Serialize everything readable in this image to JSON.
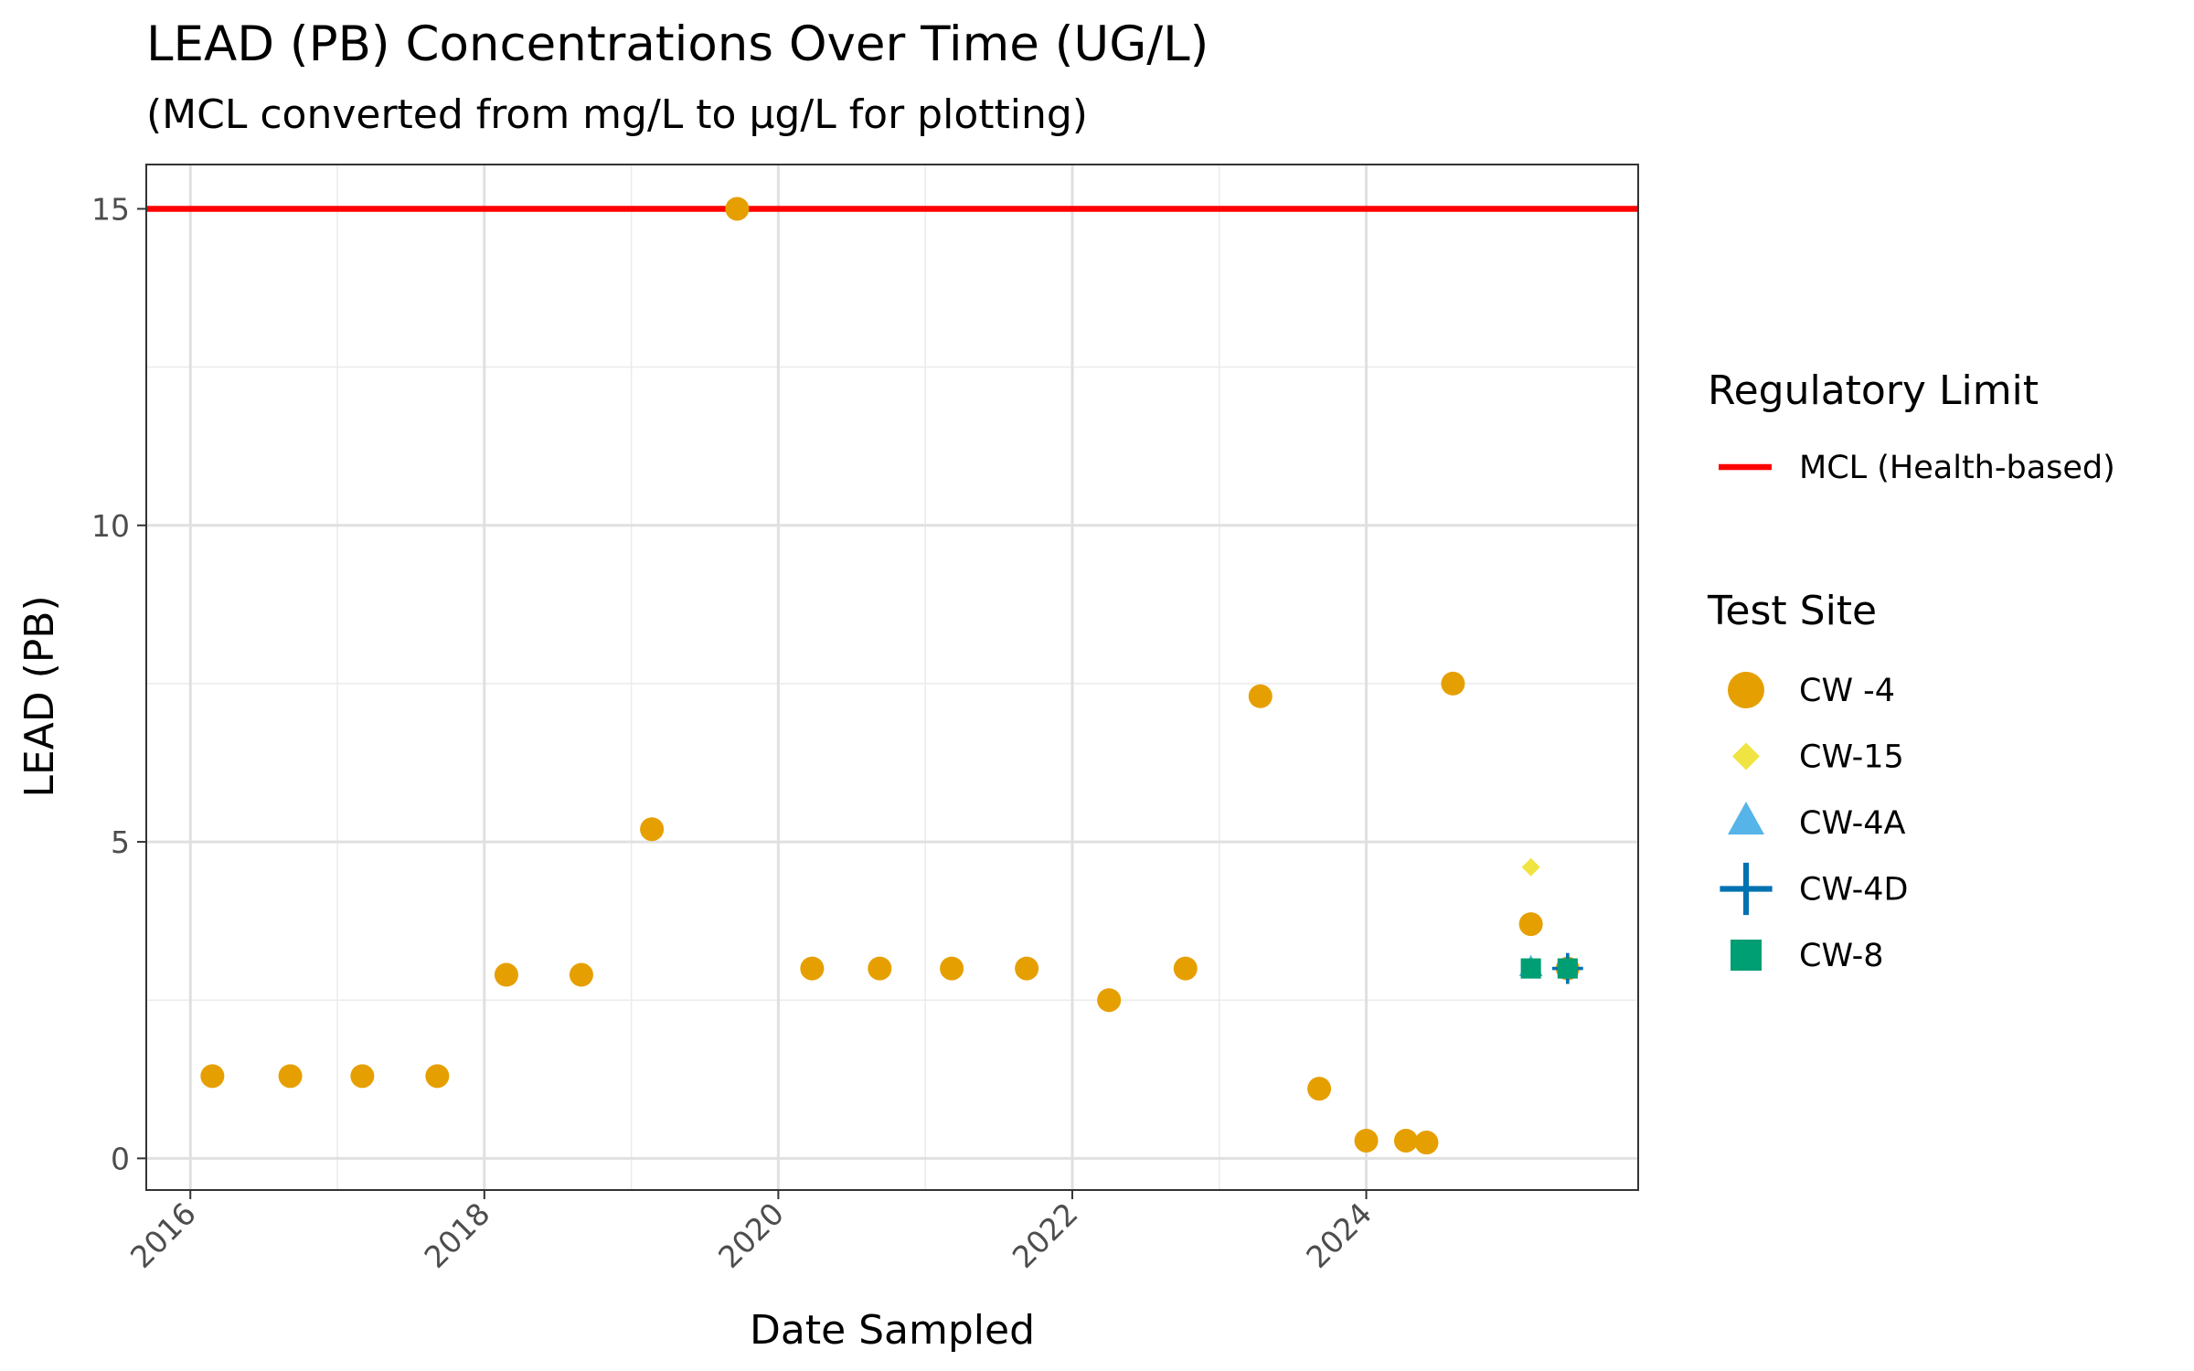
{
  "chart_data": {
    "type": "scatter",
    "title": "LEAD (PB) Concentrations Over Time (UG/L)",
    "subtitle": "(MCL converted from mg/L to µg/L for plotting)",
    "xlabel": "Date Sampled",
    "ylabel": "LEAD (PB)",
    "xlim": [
      2015.7,
      2025.85
    ],
    "ylim": [
      -0.5,
      15.7
    ],
    "x_ticks": [
      2016,
      2018,
      2020,
      2022,
      2024
    ],
    "x_tick_labels": [
      "2016",
      "2018",
      "2020",
      "2022",
      "2024"
    ],
    "y_ticks": [
      0,
      5,
      10,
      15
    ],
    "y_tick_labels": [
      "0",
      "5",
      "10",
      "15"
    ],
    "grid": true,
    "reference_lines": [
      {
        "name": "MCL (Health-based)",
        "y": 15,
        "color": "#ff0000"
      }
    ],
    "legends": {
      "regulatory": {
        "title": "Regulatory Limit",
        "items": [
          "MCL (Health-based)"
        ]
      },
      "sites": {
        "title": "Test Site",
        "items": [
          "CW -4",
          "CW-15",
          "CW-4A",
          "CW-4D",
          "CW-8"
        ]
      }
    },
    "series": [
      {
        "name": "CW -4",
        "shape": "circle",
        "color": "#E69F00",
        "points": [
          [
            2016.15,
            1.3
          ],
          [
            2016.68,
            1.3
          ],
          [
            2017.17,
            1.3
          ],
          [
            2017.68,
            1.3
          ],
          [
            2018.15,
            2.9
          ],
          [
            2018.66,
            2.9
          ],
          [
            2019.14,
            5.2
          ],
          [
            2019.72,
            15.0
          ],
          [
            2020.23,
            3.0
          ],
          [
            2020.69,
            3.0
          ],
          [
            2021.18,
            3.0
          ],
          [
            2021.69,
            3.0
          ],
          [
            2022.25,
            2.5
          ],
          [
            2022.77,
            3.0
          ],
          [
            2023.28,
            7.3
          ],
          [
            2023.68,
            1.1
          ],
          [
            2024.0,
            0.28
          ],
          [
            2024.27,
            0.28
          ],
          [
            2024.41,
            0.25
          ],
          [
            2024.59,
            7.5
          ],
          [
            2025.12,
            3.7
          ],
          [
            2025.37,
            3.0
          ]
        ]
      },
      {
        "name": "CW-15",
        "shape": "diamond",
        "color": "#F0E442",
        "points": [
          [
            2025.12,
            4.6
          ]
        ]
      },
      {
        "name": "CW-4A",
        "shape": "triangle",
        "color": "#56B4E9",
        "points": [
          [
            2025.12,
            3.0
          ]
        ]
      },
      {
        "name": "CW-4D",
        "shape": "cross",
        "color": "#0072B2",
        "points": [
          [
            2025.37,
            3.0
          ]
        ]
      },
      {
        "name": "CW-8",
        "shape": "square",
        "color": "#009E73",
        "points": [
          [
            2025.12,
            3.0
          ],
          [
            2025.37,
            3.0
          ]
        ]
      }
    ]
  }
}
